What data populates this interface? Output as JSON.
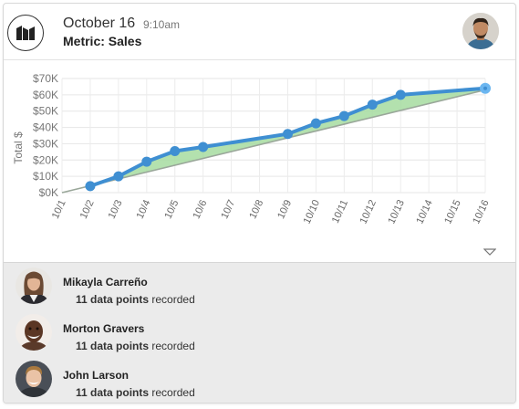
{
  "header": {
    "date": "October 16",
    "time": "9:10am",
    "metric": "Metric: Sales"
  },
  "chart_data": {
    "type": "line",
    "ylabel": "Total $",
    "yticks": [
      "$0K",
      "$10K",
      "$20K",
      "$30K",
      "$40K",
      "$50K",
      "$60K",
      "$70K"
    ],
    "ylim": [
      0,
      70000
    ],
    "categories": [
      "10/1",
      "10/2",
      "10/3",
      "10/4",
      "10/5",
      "10/6",
      "10/7",
      "10/8",
      "10/9",
      "10/10",
      "10/11",
      "10/12",
      "10/13",
      "10/14",
      "10/15",
      "10/16"
    ],
    "series": [
      {
        "points": [
          {
            "x": "10/2",
            "y": 4000
          },
          {
            "x": "10/3",
            "y": 10000
          },
          {
            "x": "10/4",
            "y": 19000
          },
          {
            "x": "10/5",
            "y": 25500
          },
          {
            "x": "10/6",
            "y": 28000
          },
          {
            "x": "10/9",
            "y": 36000
          },
          {
            "x": "10/10",
            "y": 42500
          },
          {
            "x": "10/11",
            "y": 47000
          },
          {
            "x": "10/12",
            "y": 54000
          },
          {
            "x": "10/13",
            "y": 60000
          },
          {
            "x": "10/16",
            "y": 64000
          }
        ]
      },
      {
        "points": [
          {
            "x": "10/1",
            "y": 0
          },
          {
            "x": "10/16",
            "y": 63000
          }
        ]
      }
    ],
    "colors": {
      "line": "#3f8fd2",
      "trend": "#9aa79a",
      "fill": "#a6dca0",
      "last_point": "#6bb6f0"
    },
    "grid": true
  },
  "users": [
    {
      "name": "Mikayla Carreño",
      "count": "11 data points",
      "suffix": "recorded"
    },
    {
      "name": "Morton Gravers",
      "count": "11 data points",
      "suffix": "recorded"
    },
    {
      "name": "John Larson",
      "count": "11 data points",
      "suffix": "recorded"
    }
  ]
}
